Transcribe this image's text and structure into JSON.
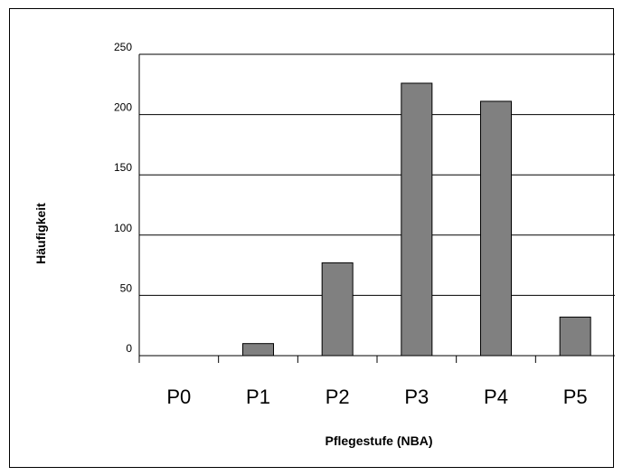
{
  "chart_data": {
    "type": "bar",
    "title": "",
    "xlabel": "Pflegestufe (NBA)",
    "ylabel": "Häufigkeit",
    "categories": [
      "P0",
      "P1",
      "P2",
      "P3",
      "P4",
      "P5"
    ],
    "values": [
      0,
      10,
      77,
      226,
      211,
      32
    ],
    "ylim": [
      0,
      250
    ],
    "yticks": [
      0,
      50,
      100,
      150,
      200,
      250
    ],
    "ytick_labels": [
      "0",
      "50",
      "100",
      "150",
      "200",
      "250"
    ],
    "grid": true,
    "legend": "none",
    "colors": {
      "bar": "#808080",
      "bar_stroke": "#000000",
      "grid": "#000000",
      "frame": "#000000"
    }
  }
}
